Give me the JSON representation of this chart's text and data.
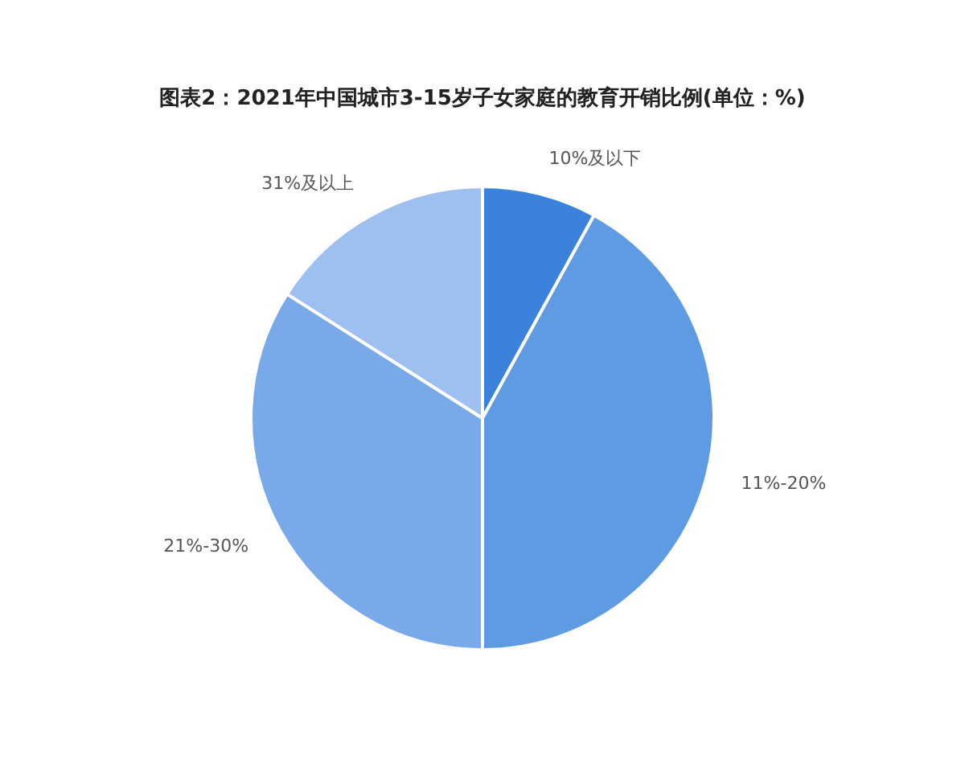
{
  "chart_data": {
    "type": "pie",
    "title": "图表2：2021年中国城市3-15岁子女家庭的教育开销比例(单位：%)",
    "categories": [
      "10%及以下",
      "11%-20%",
      "21%-30%",
      "31%及以上"
    ],
    "values": [
      8,
      42,
      34,
      16
    ],
    "colors": [
      "#3b82dc",
      "#5f9be3",
      "#79a9e8",
      "#9dc0f0"
    ],
    "legend": false
  }
}
